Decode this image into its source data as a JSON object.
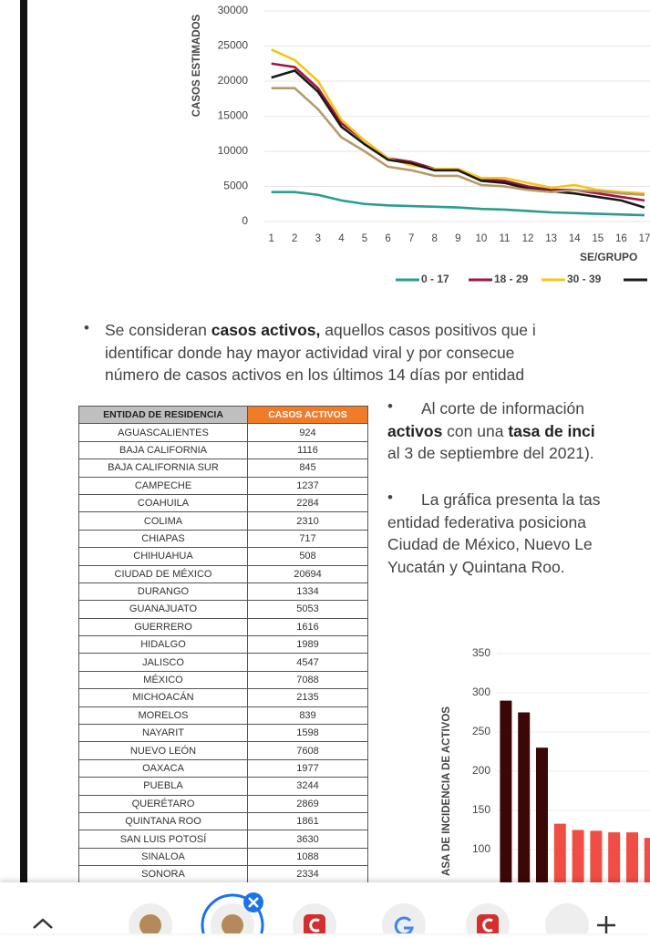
{
  "chart_data": [
    {
      "type": "line",
      "y_label": "CASOS ESTIMADOS",
      "x_label": "SE/GRUPO",
      "x": [
        1,
        2,
        3,
        4,
        5,
        6,
        7,
        8,
        9,
        10,
        11,
        12,
        13,
        14,
        15,
        16,
        17
      ],
      "xlim": [
        0.7,
        17.9
      ],
      "xticks": [
        1,
        2,
        3,
        4,
        5,
        6,
        7,
        8,
        9,
        10,
        11,
        12,
        13,
        14,
        15,
        16,
        17
      ],
      "ylim": [
        0,
        30000
      ],
      "yticks": [
        0,
        5000,
        10000,
        15000,
        20000,
        25000,
        30000
      ],
      "grid": true,
      "series": [
        {
          "name": "0 - 17",
          "color": "#2a9d8f",
          "values": [
            4200,
            4200,
            3800,
            3000,
            2500,
            2300,
            2200,
            2100,
            2000,
            1800,
            1700,
            1500,
            1300,
            1200,
            1100,
            1000,
            900
          ]
        },
        {
          "name": "18 - 29",
          "color": "#a0163f",
          "values": [
            22500,
            22000,
            19000,
            14000,
            11500,
            9000,
            8500,
            7500,
            7500,
            6000,
            5800,
            5000,
            4500,
            4500,
            4000,
            3500,
            3000
          ]
        },
        {
          "name": "30 - 39",
          "color": "#f5c518",
          "values": [
            24500,
            23000,
            20000,
            14500,
            11500,
            9000,
            8000,
            7500,
            7500,
            6200,
            6200,
            5500,
            4800,
            5200,
            4500,
            4200,
            4000
          ]
        },
        {
          "color": "#1a1a1a",
          "values": [
            20500,
            21500,
            18500,
            13500,
            11000,
            8800,
            8300,
            7300,
            7300,
            5800,
            5500,
            4700,
            4300,
            4000,
            3500,
            3000,
            2000
          ]
        },
        {
          "color": "#b89a6a",
          "values": [
            19000,
            19000,
            16000,
            12000,
            10000,
            7800,
            7300,
            6500,
            6500,
            5200,
            5000,
            4500,
            4200,
            4500,
            4300,
            4000,
            3800
          ]
        }
      ]
    },
    {
      "type": "bar",
      "y_label": "ASA DE INCIDENCIA DE ACTIVOS",
      "categories": [
        null,
        null,
        null,
        null,
        null,
        null,
        null,
        null,
        null
      ],
      "values": [
        290,
        275,
        230,
        133,
        125,
        124,
        122,
        122,
        115
      ],
      "colors": [
        "#3b0707",
        "#3b0707",
        "#3b0707",
        "#f04e45",
        "#f04e45",
        "#f04e45",
        "#f04e45",
        "#f04e45",
        "#f04e45"
      ],
      "ylim": [
        0,
        350
      ],
      "yticks": [
        100,
        150,
        200,
        250,
        300,
        350
      ],
      "grid": true
    }
  ],
  "paragraph": {
    "lines": [
      [
        {
          "text": "Se consideran "
        },
        {
          "text": "casos activos,",
          "bold": true
        },
        {
          "text": " aquellos casos positivos que i"
        }
      ],
      [
        {
          "text": "identificar donde hay mayor actividad viral y por consecue"
        }
      ],
      [
        {
          "text": "número de casos activos en los últimos 14 días por entidad"
        }
      ]
    ]
  },
  "table": {
    "header": [
      "ENTIDAD DE RESIDENCIA",
      "CASOS ACTIVOS"
    ],
    "rows": [
      [
        "AGUASCALIENTES",
        924
      ],
      [
        "BAJA CALIFORNIA",
        1116
      ],
      [
        "BAJA CALIFORNIA SUR",
        845
      ],
      [
        "CAMPECHE",
        1237
      ],
      [
        "COAHUILA",
        2284
      ],
      [
        "COLIMA",
        2310
      ],
      [
        "CHIAPAS",
        717
      ],
      [
        "CHIHUAHUA",
        508
      ],
      [
        "CIUDAD DE MÉXICO",
        20694
      ],
      [
        "DURANGO",
        1334
      ],
      [
        "GUANAJUATO",
        5053
      ],
      [
        "GUERRERO",
        1616
      ],
      [
        "HIDALGO",
        1989
      ],
      [
        "JALISCO",
        4547
      ],
      [
        "MÉXICO",
        7088
      ],
      [
        "MICHOACÁN",
        2135
      ],
      [
        "MORELOS",
        839
      ],
      [
        "NAYARIT",
        1598
      ],
      [
        "NUEVO LEÓN",
        7608
      ],
      [
        "OAXACA",
        1977
      ],
      [
        "PUEBLA",
        3244
      ],
      [
        "QUERÉTARO",
        2869
      ],
      [
        "QUINTANA ROO",
        1861
      ],
      [
        "SAN LUIS POTOSÍ",
        3630
      ],
      [
        "SINALOA",
        1088
      ],
      [
        "SONORA",
        2334
      ]
    ]
  },
  "side_text": [
    {
      "lines": [
        [
          {
            "text": "Al corte de información"
          }
        ],
        [
          {
            "text": "activos",
            "bold": true
          },
          {
            "text": " con una "
          },
          {
            "text": "tasa de inci",
            "bold": true
          }
        ],
        [
          {
            "text": "al 3 de septiembre del 2021)."
          }
        ]
      ]
    },
    {
      "lines": [
        [
          {
            "text": "La gráfica presenta la tas"
          }
        ],
        [
          {
            "text": "entidad federativa posiciona"
          }
        ],
        [
          {
            "text": "Ciudad de México, Nuevo Le"
          }
        ],
        [
          {
            "text": "Yucatán y Quintana Roo."
          }
        ]
      ]
    }
  ]
}
